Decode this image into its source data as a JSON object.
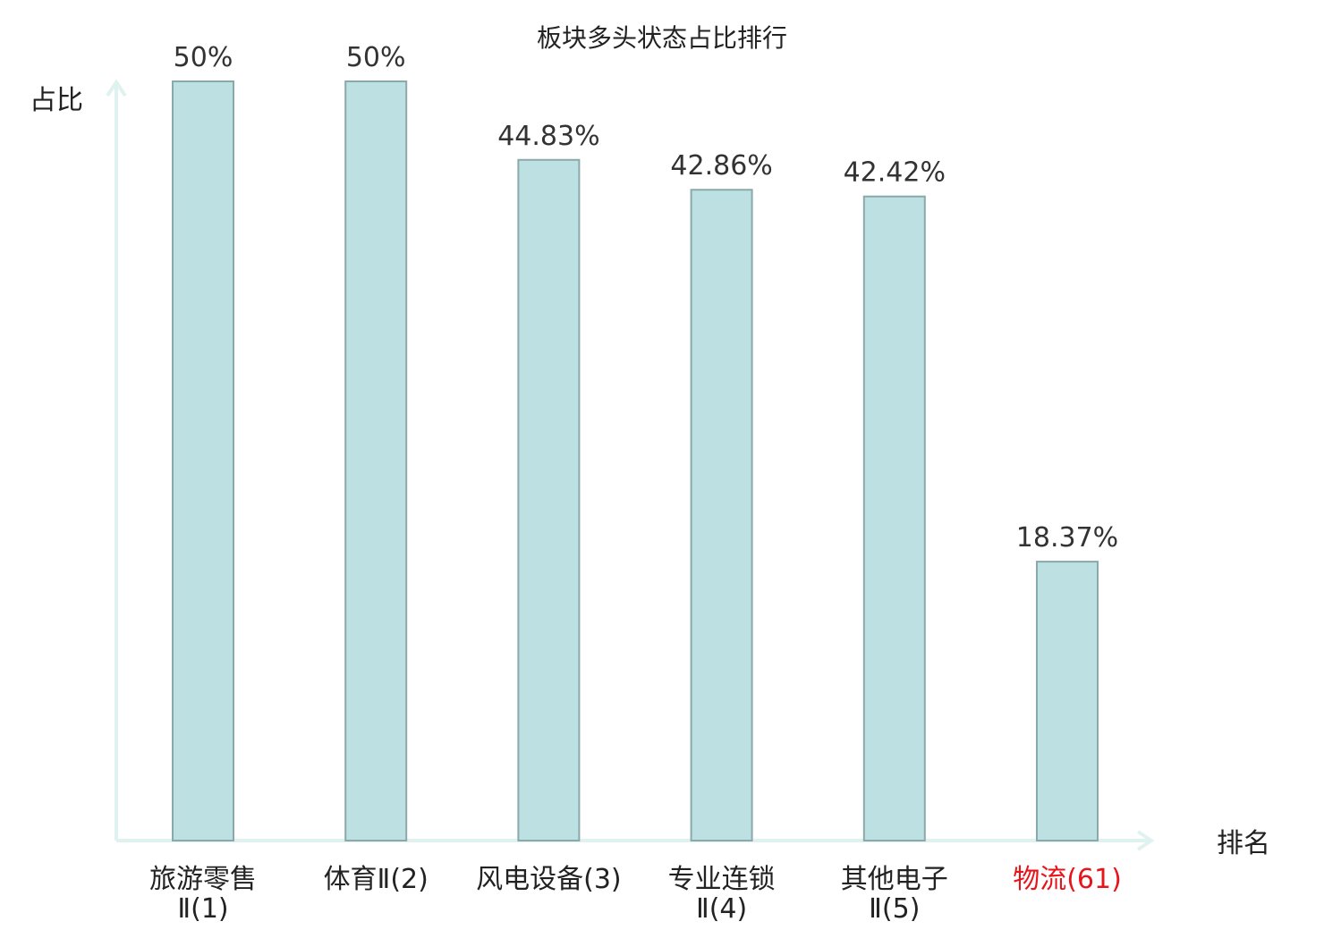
{
  "chart_data": {
    "type": "bar",
    "title": "板块多头状态占比排行",
    "ylabel": "占比",
    "xlabel": "排名",
    "categories": [
      [
        "旅游零售",
        "Ⅱ(1)"
      ],
      [
        "体育Ⅱ(2)"
      ],
      [
        "风电设备(3)"
      ],
      [
        "专业连锁",
        "Ⅱ(4)"
      ],
      [
        "其他电子",
        "Ⅱ(5)"
      ],
      [
        "物流(61)"
      ]
    ],
    "values": [
      50,
      50,
      44.83,
      42.86,
      42.42,
      18.37
    ],
    "value_labels": [
      "50%",
      "50%",
      "44.83%",
      "42.86%",
      "42.42%",
      "18.37%"
    ],
    "ylim": [
      0,
      50
    ],
    "grid": false,
    "legend": "none",
    "highlight_index": 5,
    "colors": {
      "bar_fill": "#bde0e3",
      "bar_stroke": "#8aa9ab",
      "axis": "#e0f2ef",
      "text": "#222222",
      "highlight_text": "#e8141b"
    }
  }
}
